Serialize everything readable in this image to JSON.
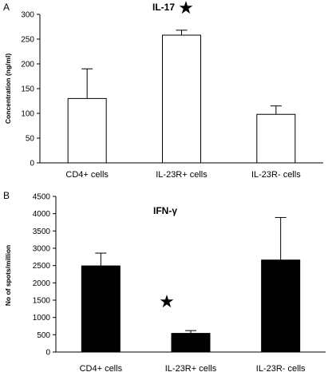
{
  "chart_data": [
    {
      "type": "bar",
      "panel_letter": "A",
      "title": "IL-17",
      "xlabel": "",
      "ylabel": "Concentration (ng/ml)",
      "categories": [
        "CD4+ cells",
        "IL-23R+ cells",
        "IL-23R- cells"
      ],
      "values": [
        130,
        258,
        98
      ],
      "error_upper": [
        60,
        10,
        17
      ],
      "ylim": [
        0,
        300
      ],
      "yticks": [
        0,
        50,
        100,
        150,
        200,
        250,
        300
      ],
      "bar_fill": "#ffffff",
      "annotation": {
        "symbol": "★",
        "placement": "next to title"
      }
    },
    {
      "type": "bar",
      "panel_letter": "B",
      "title": "IFN-γ",
      "xlabel": "",
      "ylabel": "No of spots/million",
      "categories": [
        "CD4+ cells",
        "IL-23R+ cells",
        "IL-23R- cells"
      ],
      "values": [
        2490,
        540,
        2660
      ],
      "error_upper": [
        370,
        80,
        1230
      ],
      "ylim": [
        0,
        4500
      ],
      "yticks": [
        0,
        500,
        1000,
        1500,
        2000,
        2500,
        3000,
        3500,
        4000,
        4500
      ],
      "bar_fill": "#000000",
      "annotation": {
        "symbol": "★",
        "placement": "above IL-23R+ cells bar"
      }
    }
  ]
}
